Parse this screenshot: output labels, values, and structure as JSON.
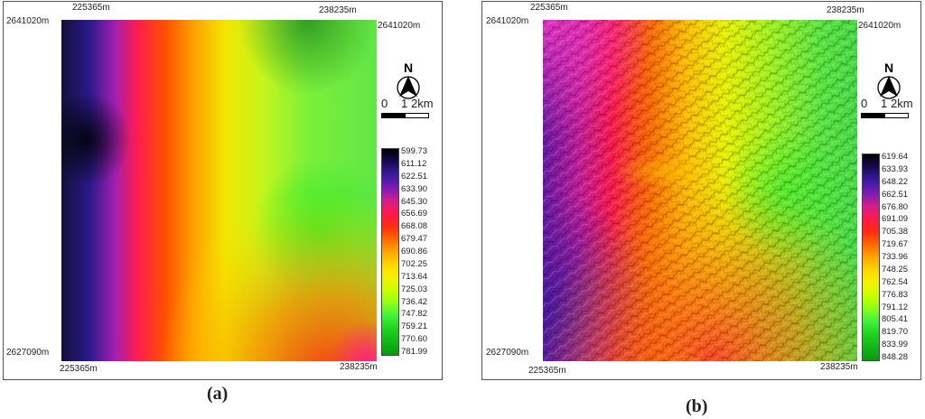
{
  "panels": [
    {
      "id": "a",
      "caption": "(a)",
      "coords": {
        "top_left_x": "225365m",
        "top_right_x": "238235m",
        "left_y_top": "2641020m",
        "right_y_top": "2641020m",
        "left_y_bottom": "2627090m",
        "bottom_left_x": "225365m",
        "bottom_right_x": "238235m"
      },
      "north_label": "N",
      "scale": {
        "labels": [
          "0",
          "1",
          "2km"
        ]
      },
      "legend": {
        "values": [
          "599.73",
          "611.12",
          "622.51",
          "633.90",
          "645.30",
          "656.69",
          "668.08",
          "679.47",
          "690.86",
          "702.25",
          "713.64",
          "725.03",
          "736.42",
          "747.82",
          "759.21",
          "770.60",
          "781.99"
        ],
        "colors": [
          "#000000",
          "#1a0a55",
          "#3a1a9e",
          "#7a1bb5",
          "#d21e8c",
          "#ff1a4a",
          "#ff2a14",
          "#ff6a00",
          "#ffa600",
          "#ffd700",
          "#f2f200",
          "#c8ff00",
          "#8cff1a",
          "#3cf03c",
          "#1ed21e",
          "#14b41a",
          "#0a9a0a"
        ]
      }
    },
    {
      "id": "b",
      "caption": "(b)",
      "coords": {
        "top_left_x": "225365m",
        "top_right_x": "238235m",
        "left_y_top": "2641020m",
        "right_y_top": "2641020m",
        "left_y_bottom": "2627090m",
        "bottom_left_x": "225365m",
        "bottom_right_x": "238235m"
      },
      "north_label": "N",
      "scale": {
        "labels": [
          "0",
          "1",
          "2km"
        ]
      },
      "legend": {
        "values": [
          "619.64",
          "633.93",
          "648.22",
          "662.51",
          "676.80",
          "691.09",
          "705.38",
          "719.67",
          "733.96",
          "748.25",
          "762.54",
          "776.83",
          "791.12",
          "805.41",
          "819.70",
          "833.99",
          "848.28"
        ],
        "colors": [
          "#000000",
          "#1a0a55",
          "#3a1a9e",
          "#7a1bb5",
          "#d21e8c",
          "#ff1a4a",
          "#ff2a14",
          "#ff6a00",
          "#ffa600",
          "#ffd700",
          "#f2f200",
          "#c8ff00",
          "#8cff1a",
          "#3cf03c",
          "#1ed21e",
          "#14b41a",
          "#0a9a0a"
        ]
      }
    }
  ]
}
